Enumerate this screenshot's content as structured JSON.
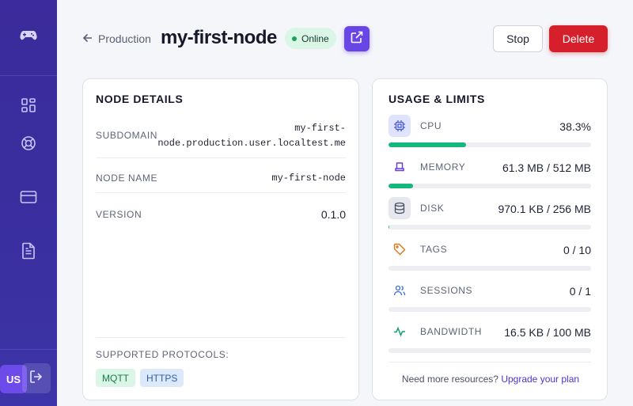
{
  "sidebar": {
    "logo_icon": "gamepad-icon",
    "items": [
      {
        "icon": "dashboard-icon"
      },
      {
        "icon": "help-ring-icon"
      },
      {
        "icon": "credit-card-icon"
      },
      {
        "icon": "document-icon"
      }
    ],
    "avatar": "US",
    "logout_icon": "logout-icon"
  },
  "header": {
    "breadcrumb": "Production",
    "title": "my-first-node",
    "status": "Online",
    "stop_label": "Stop",
    "delete_label": "Delete"
  },
  "details": {
    "title": "NODE DETAILS",
    "rows": [
      {
        "label": "SUBDOMAIN",
        "value_line1": "my-first-",
        "value_line2": "node.production.user.localtest.me"
      },
      {
        "label": "NODE NAME",
        "value": "my-first-node"
      },
      {
        "label": "VERSION",
        "value": "0.1.0"
      }
    ],
    "protocols_label": "SUPPORTED PROTOCOLS:",
    "protocols": [
      "MQTT",
      "HTTPS"
    ]
  },
  "usage": {
    "title": "USAGE & LIMITS",
    "metrics": [
      {
        "label": "CPU",
        "value": "38.3%",
        "fraction": 0.383,
        "icon": "cpu-icon",
        "color": "#4a5bd6"
      },
      {
        "label": "MEMORY",
        "value": "61.3 MB / 512 MB",
        "fraction": 0.12,
        "icon": "memory-icon",
        "color": "#6a3fd6"
      },
      {
        "label": "DISK",
        "value": "970.1 KB / 256 MB",
        "fraction": 0.004,
        "icon": "database-icon",
        "color": "#4a5064"
      },
      {
        "label": "TAGS",
        "value": "0 / 10",
        "fraction": 0,
        "icon": "tag-icon",
        "color": "#d97a1a"
      },
      {
        "label": "SESSIONS",
        "value": "0 / 1",
        "fraction": 0,
        "icon": "users-icon",
        "color": "#3a6ad6"
      },
      {
        "label": "BANDWIDTH",
        "value": "16.5 KB / 100 MB",
        "fraction": 0,
        "icon": "activity-icon",
        "color": "#14a070"
      }
    ],
    "footer_text": "Need more resources?",
    "footer_link": "Upgrade your plan"
  },
  "colors": {
    "accent": "#6a45e6",
    "danger": "#d51f2a",
    "success": "#14b77c",
    "sidebar": "#3b2b9c"
  }
}
